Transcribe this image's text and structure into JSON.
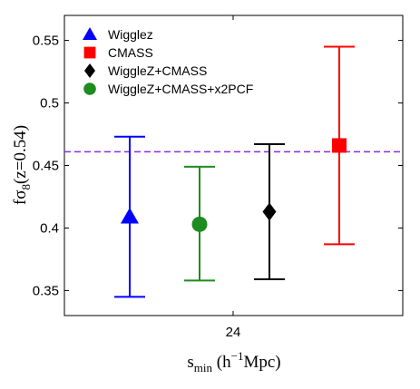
{
  "chart_data": {
    "type": "scatter",
    "title": "",
    "xlabel": {
      "base": "s",
      "sub": "min",
      "rest1": " (h",
      "sup": "−1",
      "rest2": "Mpc)"
    },
    "ylabel": {
      "base": "fσ",
      "sub": "8",
      "rest": "(z=0.54)"
    },
    "ylim": [
      0.33,
      0.57
    ],
    "yticks": [
      "0.35",
      "0.4",
      "0.45",
      "0.5",
      "0.55"
    ],
    "x_tick_label": "24",
    "grid": false,
    "legend_position": "top-left",
    "reference_line": {
      "value": 0.461,
      "color": "#8a2be2",
      "style": "dashed"
    },
    "series": [
      {
        "name": "Wigglez",
        "marker": "triangle",
        "color": "#0000ff",
        "order": 0,
        "y": 0.409,
        "lower": 0.345,
        "upper": 0.473
      },
      {
        "name": "WiggleZ+CMASS+x2PCF",
        "marker": "circle",
        "color": "#1e8c1e",
        "order": 1,
        "y": 0.403,
        "lower": 0.358,
        "upper": 0.449
      },
      {
        "name": "WiggleZ+CMASS",
        "marker": "diamond",
        "color": "#000000",
        "order": 2,
        "y": 0.413,
        "lower": 0.359,
        "upper": 0.467
      },
      {
        "name": "CMASS",
        "marker": "square",
        "color": "#ff0000",
        "order": 3,
        "y": 0.466,
        "lower": 0.387,
        "upper": 0.545
      }
    ],
    "legend_order": [
      "Wigglez",
      "CMASS",
      "WiggleZ+CMASS",
      "WiggleZ+CMASS+x2PCF"
    ]
  }
}
